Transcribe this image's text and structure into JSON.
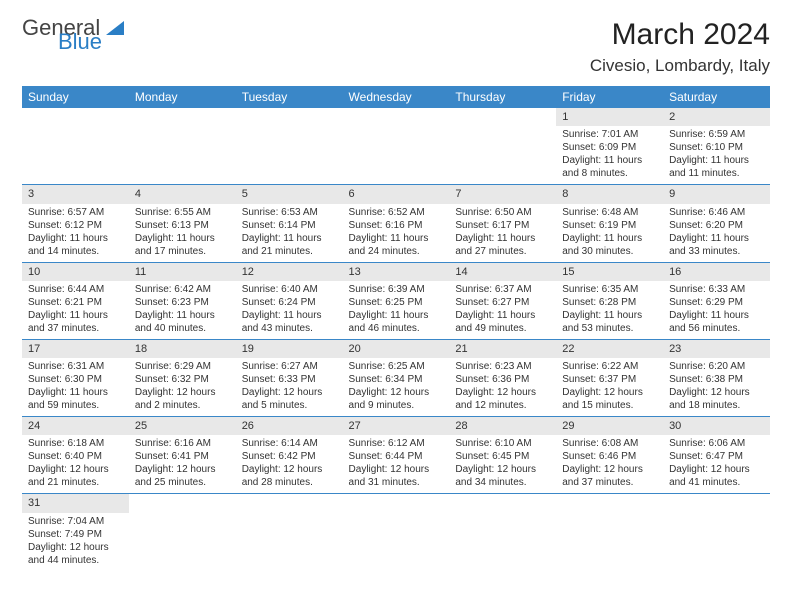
{
  "logo": {
    "part1": "General",
    "part2": "Blue"
  },
  "title": "March 2024",
  "location": "Civesio, Lombardy, Italy",
  "weekdays": [
    "Sunday",
    "Monday",
    "Tuesday",
    "Wednesday",
    "Thursday",
    "Friday",
    "Saturday"
  ],
  "header_bg": "#3a87c8",
  "header_fg": "#ffffff",
  "daybar_bg": "#e8e8e8",
  "rule_color": "#3a87c8",
  "weeks": [
    [
      {
        "n": "",
        "sr": "",
        "ss": "",
        "dl": ""
      },
      {
        "n": "",
        "sr": "",
        "ss": "",
        "dl": ""
      },
      {
        "n": "",
        "sr": "",
        "ss": "",
        "dl": ""
      },
      {
        "n": "",
        "sr": "",
        "ss": "",
        "dl": ""
      },
      {
        "n": "",
        "sr": "",
        "ss": "",
        "dl": ""
      },
      {
        "n": "1",
        "sr": "Sunrise: 7:01 AM",
        "ss": "Sunset: 6:09 PM",
        "dl": "Daylight: 11 hours and 8 minutes."
      },
      {
        "n": "2",
        "sr": "Sunrise: 6:59 AM",
        "ss": "Sunset: 6:10 PM",
        "dl": "Daylight: 11 hours and 11 minutes."
      }
    ],
    [
      {
        "n": "3",
        "sr": "Sunrise: 6:57 AM",
        "ss": "Sunset: 6:12 PM",
        "dl": "Daylight: 11 hours and 14 minutes."
      },
      {
        "n": "4",
        "sr": "Sunrise: 6:55 AM",
        "ss": "Sunset: 6:13 PM",
        "dl": "Daylight: 11 hours and 17 minutes."
      },
      {
        "n": "5",
        "sr": "Sunrise: 6:53 AM",
        "ss": "Sunset: 6:14 PM",
        "dl": "Daylight: 11 hours and 21 minutes."
      },
      {
        "n": "6",
        "sr": "Sunrise: 6:52 AM",
        "ss": "Sunset: 6:16 PM",
        "dl": "Daylight: 11 hours and 24 minutes."
      },
      {
        "n": "7",
        "sr": "Sunrise: 6:50 AM",
        "ss": "Sunset: 6:17 PM",
        "dl": "Daylight: 11 hours and 27 minutes."
      },
      {
        "n": "8",
        "sr": "Sunrise: 6:48 AM",
        "ss": "Sunset: 6:19 PM",
        "dl": "Daylight: 11 hours and 30 minutes."
      },
      {
        "n": "9",
        "sr": "Sunrise: 6:46 AM",
        "ss": "Sunset: 6:20 PM",
        "dl": "Daylight: 11 hours and 33 minutes."
      }
    ],
    [
      {
        "n": "10",
        "sr": "Sunrise: 6:44 AM",
        "ss": "Sunset: 6:21 PM",
        "dl": "Daylight: 11 hours and 37 minutes."
      },
      {
        "n": "11",
        "sr": "Sunrise: 6:42 AM",
        "ss": "Sunset: 6:23 PM",
        "dl": "Daylight: 11 hours and 40 minutes."
      },
      {
        "n": "12",
        "sr": "Sunrise: 6:40 AM",
        "ss": "Sunset: 6:24 PM",
        "dl": "Daylight: 11 hours and 43 minutes."
      },
      {
        "n": "13",
        "sr": "Sunrise: 6:39 AM",
        "ss": "Sunset: 6:25 PM",
        "dl": "Daylight: 11 hours and 46 minutes."
      },
      {
        "n": "14",
        "sr": "Sunrise: 6:37 AM",
        "ss": "Sunset: 6:27 PM",
        "dl": "Daylight: 11 hours and 49 minutes."
      },
      {
        "n": "15",
        "sr": "Sunrise: 6:35 AM",
        "ss": "Sunset: 6:28 PM",
        "dl": "Daylight: 11 hours and 53 minutes."
      },
      {
        "n": "16",
        "sr": "Sunrise: 6:33 AM",
        "ss": "Sunset: 6:29 PM",
        "dl": "Daylight: 11 hours and 56 minutes."
      }
    ],
    [
      {
        "n": "17",
        "sr": "Sunrise: 6:31 AM",
        "ss": "Sunset: 6:30 PM",
        "dl": "Daylight: 11 hours and 59 minutes."
      },
      {
        "n": "18",
        "sr": "Sunrise: 6:29 AM",
        "ss": "Sunset: 6:32 PM",
        "dl": "Daylight: 12 hours and 2 minutes."
      },
      {
        "n": "19",
        "sr": "Sunrise: 6:27 AM",
        "ss": "Sunset: 6:33 PM",
        "dl": "Daylight: 12 hours and 5 minutes."
      },
      {
        "n": "20",
        "sr": "Sunrise: 6:25 AM",
        "ss": "Sunset: 6:34 PM",
        "dl": "Daylight: 12 hours and 9 minutes."
      },
      {
        "n": "21",
        "sr": "Sunrise: 6:23 AM",
        "ss": "Sunset: 6:36 PM",
        "dl": "Daylight: 12 hours and 12 minutes."
      },
      {
        "n": "22",
        "sr": "Sunrise: 6:22 AM",
        "ss": "Sunset: 6:37 PM",
        "dl": "Daylight: 12 hours and 15 minutes."
      },
      {
        "n": "23",
        "sr": "Sunrise: 6:20 AM",
        "ss": "Sunset: 6:38 PM",
        "dl": "Daylight: 12 hours and 18 minutes."
      }
    ],
    [
      {
        "n": "24",
        "sr": "Sunrise: 6:18 AM",
        "ss": "Sunset: 6:40 PM",
        "dl": "Daylight: 12 hours and 21 minutes."
      },
      {
        "n": "25",
        "sr": "Sunrise: 6:16 AM",
        "ss": "Sunset: 6:41 PM",
        "dl": "Daylight: 12 hours and 25 minutes."
      },
      {
        "n": "26",
        "sr": "Sunrise: 6:14 AM",
        "ss": "Sunset: 6:42 PM",
        "dl": "Daylight: 12 hours and 28 minutes."
      },
      {
        "n": "27",
        "sr": "Sunrise: 6:12 AM",
        "ss": "Sunset: 6:44 PM",
        "dl": "Daylight: 12 hours and 31 minutes."
      },
      {
        "n": "28",
        "sr": "Sunrise: 6:10 AM",
        "ss": "Sunset: 6:45 PM",
        "dl": "Daylight: 12 hours and 34 minutes."
      },
      {
        "n": "29",
        "sr": "Sunrise: 6:08 AM",
        "ss": "Sunset: 6:46 PM",
        "dl": "Daylight: 12 hours and 37 minutes."
      },
      {
        "n": "30",
        "sr": "Sunrise: 6:06 AM",
        "ss": "Sunset: 6:47 PM",
        "dl": "Daylight: 12 hours and 41 minutes."
      }
    ],
    [
      {
        "n": "31",
        "sr": "Sunrise: 7:04 AM",
        "ss": "Sunset: 7:49 PM",
        "dl": "Daylight: 12 hours and 44 minutes."
      },
      {
        "n": "",
        "sr": "",
        "ss": "",
        "dl": ""
      },
      {
        "n": "",
        "sr": "",
        "ss": "",
        "dl": ""
      },
      {
        "n": "",
        "sr": "",
        "ss": "",
        "dl": ""
      },
      {
        "n": "",
        "sr": "",
        "ss": "",
        "dl": ""
      },
      {
        "n": "",
        "sr": "",
        "ss": "",
        "dl": ""
      },
      {
        "n": "",
        "sr": "",
        "ss": "",
        "dl": ""
      }
    ]
  ]
}
